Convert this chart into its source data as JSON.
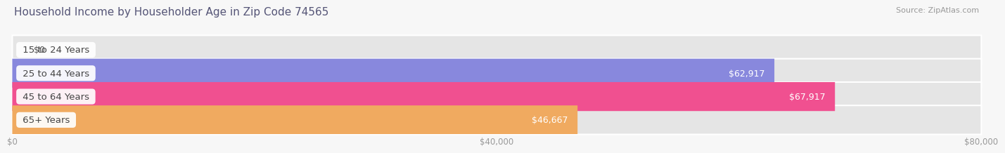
{
  "title": "Household Income by Householder Age in Zip Code 74565",
  "source": "Source: ZipAtlas.com",
  "categories": [
    "15 to 24 Years",
    "25 to 44 Years",
    "45 to 64 Years",
    "65+ Years"
  ],
  "values": [
    0,
    62917,
    67917,
    46667
  ],
  "labels": [
    "$0",
    "$62,917",
    "$67,917",
    "$46,667"
  ],
  "bar_colors": [
    "#60cece",
    "#8888dd",
    "#f05090",
    "#f0aa60"
  ],
  "x_max": 80000,
  "x_ticks": [
    0,
    40000,
    80000
  ],
  "x_tick_labels": [
    "$0",
    "$40,000",
    "$80,000"
  ],
  "background_color": "#f7f7f7",
  "bar_bg_color": "#e5e5e5",
  "title_color": "#555577",
  "source_color": "#999999",
  "title_fontsize": 11,
  "source_fontsize": 8,
  "bar_label_fontsize": 9,
  "category_fontsize": 9.5,
  "tick_fontsize": 8.5
}
